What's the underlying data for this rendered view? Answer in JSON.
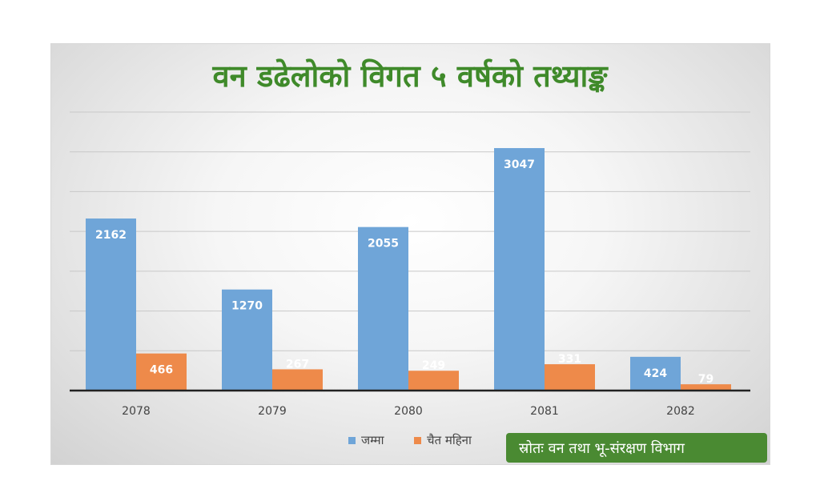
{
  "chart_data": {
    "type": "bar",
    "title": "वन डढेलोको विगत ५ वर्षको तथ्याङ्क",
    "categories": [
      "2078",
      "2079",
      "2080",
      "2081",
      "2082"
    ],
    "series": [
      {
        "name": "जम्मा",
        "values": [
          2162,
          1270,
          2055,
          3047,
          424
        ],
        "color": "#6fa5d8"
      },
      {
        "name": "चैत महिना",
        "values": [
          466,
          267,
          249,
          331,
          79
        ],
        "color": "#ee8a4a"
      }
    ],
    "ylim": [
      0,
      3500
    ],
    "grid": true,
    "legend": "bottom",
    "data_labels": true
  },
  "source": {
    "label": "स्रोतः वन तथा भू-संरक्षण विभाग"
  },
  "colors": {
    "title": "#3f8a2a",
    "source_bg": "#4a8a32",
    "gridline": "#c8c8c8",
    "axis": "#222222"
  }
}
